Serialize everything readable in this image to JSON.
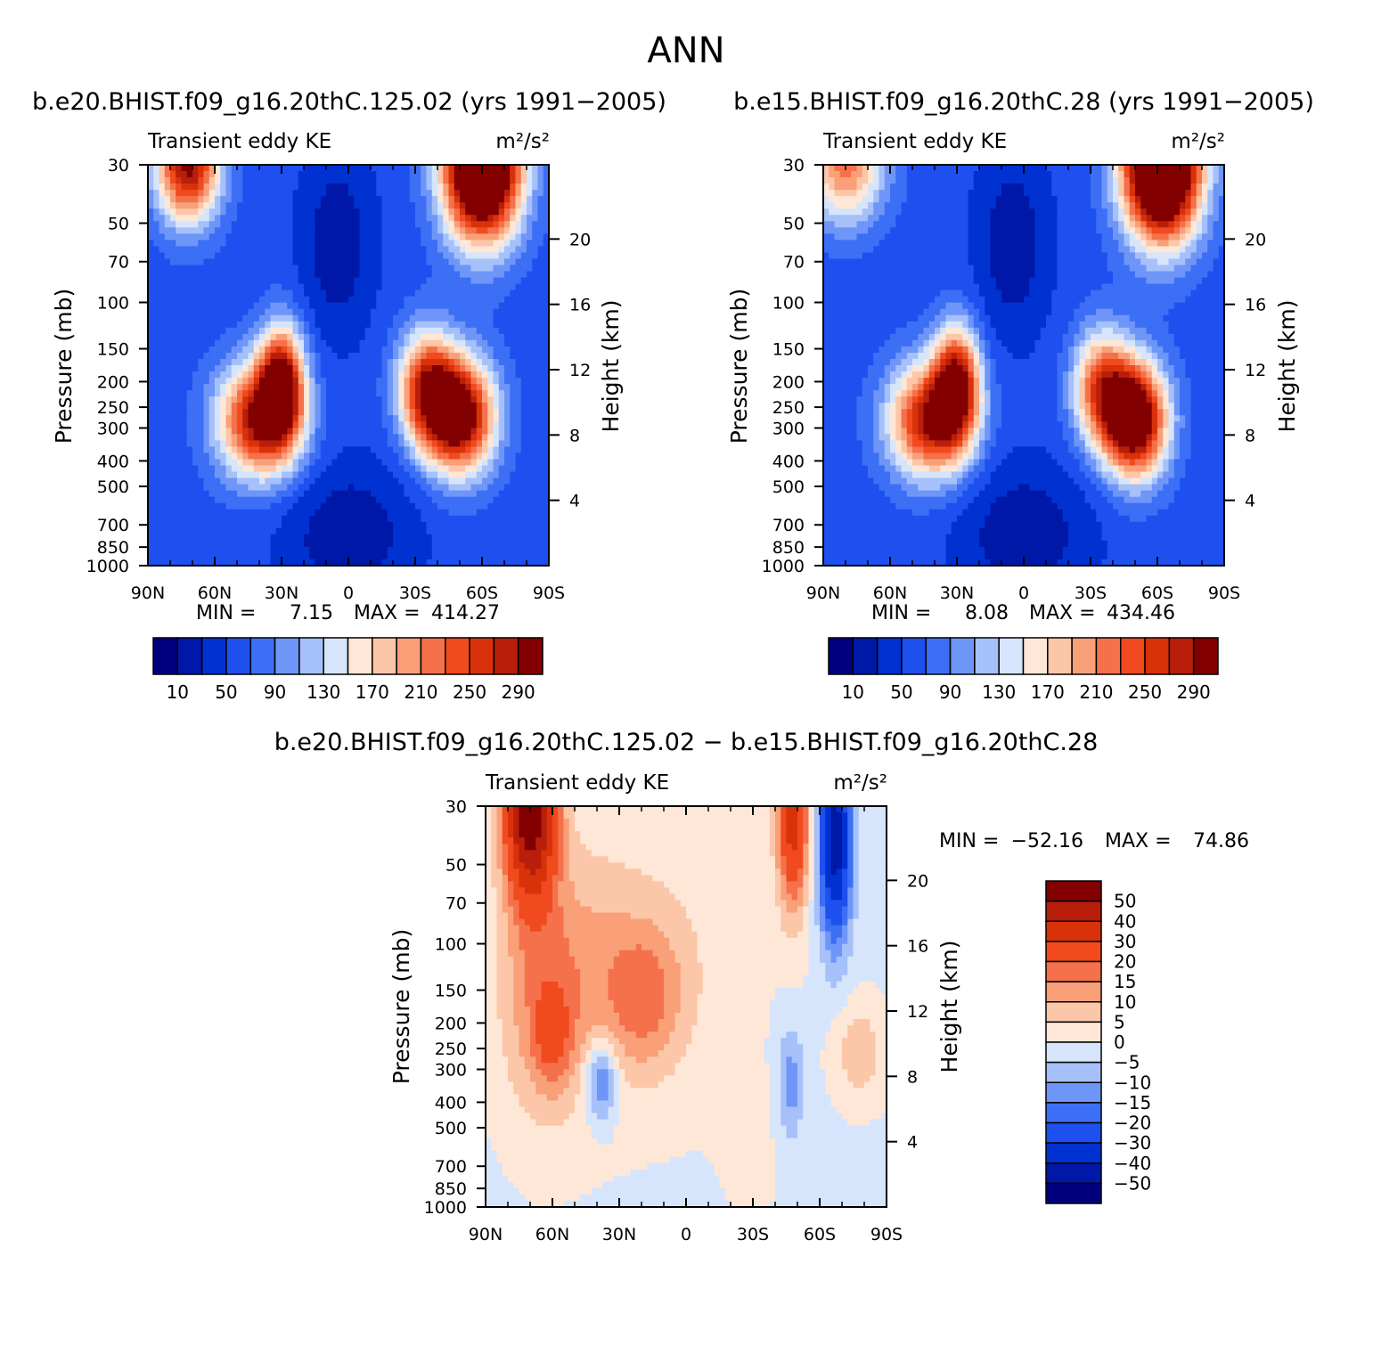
{
  "page_title": "ANN",
  "palettes": {
    "abs": [
      "#00007f",
      "#0018a8",
      "#0032d2",
      "#1e50f0",
      "#3c6ff5",
      "#6e96f8",
      "#a6c0fa",
      "#d6e5fb",
      "#fee7d6",
      "#fcc6a8",
      "#f9a079",
      "#f5714b",
      "#f04a1e",
      "#d9320a",
      "#b81e0a",
      "#820000"
    ],
    "diff": [
      "#00007f",
      "#0018a8",
      "#0032d2",
      "#1e50f0",
      "#3c6ff5",
      "#6e96f8",
      "#a6c0fa",
      "#d6e5fb",
      "#fee7d6",
      "#fcc6a8",
      "#f9a079",
      "#f5714b",
      "#f04a1e",
      "#d9320a",
      "#b81e0a",
      "#820000"
    ]
  },
  "chart_data": [
    {
      "type": "heatmap",
      "id": "panel_a",
      "title": "b.e20.BHIST.f09_g16.20thC.125.02 (yrs 1991−2005)",
      "left_label": "Transient eddy KE",
      "right_label": "m²/s²",
      "ylabel": "Pressure (mb)",
      "y2label": "Height (km)",
      "x_ticks": [
        "90N",
        "60N",
        "30N",
        "0",
        "30S",
        "60S",
        "90S"
      ],
      "x_values": [
        90,
        60,
        30,
        0,
        -30,
        -60,
        -90
      ],
      "y_ticks": [
        30,
        50,
        70,
        100,
        150,
        200,
        250,
        300,
        400,
        500,
        700,
        850,
        1000
      ],
      "y2_ticks": [
        20,
        16,
        12,
        8,
        4
      ],
      "ylim": [
        1000,
        30
      ],
      "stats": {
        "min_label": "MIN =",
        "min": "7.15",
        "max_label": "MAX =",
        "max": "414.27"
      },
      "levels": [
        10,
        30,
        50,
        70,
        90,
        110,
        130,
        150,
        170,
        190,
        210,
        230,
        250,
        270,
        290
      ],
      "colorbar_labels": [
        "10",
        "50",
        "90",
        "130",
        "170",
        "210",
        "250",
        "290"
      ],
      "field": {
        "base": 60,
        "features": [
          {
            "lat": 72,
            "p": 30,
            "amp": 240,
            "lat_w": 10,
            "lp_w": 0.35
          },
          {
            "lat": -60,
            "p": 30,
            "amp": 400,
            "lat_w": 12,
            "lp_w": 0.45
          },
          {
            "lat": 40,
            "p": 280,
            "amp": 230,
            "lat_w": 13,
            "lp_w": 0.35
          },
          {
            "lat": 30,
            "p": 200,
            "amp": 220,
            "lat_w": 7,
            "lp_w": 0.35
          },
          {
            "lat": -35,
            "p": 210,
            "amp": 190,
            "lat_w": 9,
            "lp_w": 0.35
          },
          {
            "lat": -50,
            "p": 270,
            "amp": 270,
            "lat_w": 11,
            "lp_w": 0.35
          },
          {
            "lat": 5,
            "p": 60,
            "amp": -45,
            "lat_w": 12,
            "lp_w": 0.6
          },
          {
            "lat": 0,
            "p": 750,
            "amp": -45,
            "lat_w": 22,
            "lp_w": 0.45
          }
        ]
      }
    },
    {
      "type": "heatmap",
      "id": "panel_b",
      "title": "b.e15.BHIST.f09_g16.20thC.28 (yrs 1991−2005)",
      "left_label": "Transient eddy KE",
      "right_label": "m²/s²",
      "ylabel": "Pressure (mb)",
      "y2label": "Height (km)",
      "x_ticks": [
        "90N",
        "60N",
        "30N",
        "0",
        "30S",
        "60S",
        "90S"
      ],
      "x_values": [
        90,
        60,
        30,
        0,
        -30,
        -60,
        -90
      ],
      "y_ticks": [
        30,
        50,
        70,
        100,
        150,
        200,
        250,
        300,
        400,
        500,
        700,
        850,
        1000
      ],
      "y2_ticks": [
        20,
        16,
        12,
        8,
        4
      ],
      "ylim": [
        1000,
        30
      ],
      "stats": {
        "min_label": "MIN =",
        "min": "8.08",
        "max_label": "MAX =",
        "max": "434.46"
      },
      "levels": [
        10,
        30,
        50,
        70,
        90,
        110,
        130,
        150,
        170,
        190,
        210,
        230,
        250,
        270,
        290
      ],
      "colorbar_labels": [
        "10",
        "50",
        "90",
        "130",
        "170",
        "210",
        "250",
        "290"
      ],
      "field": {
        "base": 60,
        "features": [
          {
            "lat": 80,
            "p": 30,
            "amp": 160,
            "lat_w": 12,
            "lp_w": 0.35
          },
          {
            "lat": -62,
            "p": 30,
            "amp": 420,
            "lat_w": 12,
            "lp_w": 0.45
          },
          {
            "lat": 42,
            "p": 280,
            "amp": 230,
            "lat_w": 13,
            "lp_w": 0.35
          },
          {
            "lat": 30,
            "p": 200,
            "amp": 210,
            "lat_w": 7,
            "lp_w": 0.35
          },
          {
            "lat": -35,
            "p": 210,
            "amp": 170,
            "lat_w": 9,
            "lp_w": 0.35
          },
          {
            "lat": -50,
            "p": 280,
            "amp": 290,
            "lat_w": 10,
            "lp_w": 0.35
          },
          {
            "lat": 5,
            "p": 60,
            "amp": -45,
            "lat_w": 12,
            "lp_w": 0.6
          },
          {
            "lat": 0,
            "p": 750,
            "amp": -45,
            "lat_w": 22,
            "lp_w": 0.45
          }
        ]
      }
    },
    {
      "type": "heatmap",
      "id": "panel_diff",
      "title": "b.e20.BHIST.f09_g16.20thC.125.02 − b.e15.BHIST.f09_g16.20thC.28",
      "left_label": "Transient eddy KE",
      "right_label": "m²/s²",
      "ylabel": "Pressure (mb)",
      "y2label": "Height (km)",
      "x_ticks": [
        "90N",
        "60N",
        "30N",
        "0",
        "30S",
        "60S",
        "90S"
      ],
      "x_values": [
        90,
        60,
        30,
        0,
        -30,
        -60,
        -90
      ],
      "y_ticks": [
        30,
        50,
        70,
        100,
        150,
        200,
        250,
        300,
        400,
        500,
        700,
        850,
        1000
      ],
      "y2_ticks": [
        20,
        16,
        12,
        8,
        4
      ],
      "ylim": [
        1000,
        30
      ],
      "stats": {
        "min_label": "MIN =",
        "min": "−52.16",
        "max_label": "MAX =",
        "max": "74.86"
      },
      "levels": [
        -50,
        -40,
        -30,
        -20,
        -15,
        -10,
        -5,
        0,
        5,
        10,
        15,
        20,
        30,
        40,
        50
      ],
      "colorbar_labels": [
        "50",
        "40",
        "30",
        "20",
        "15",
        "10",
        "5",
        "0",
        "−5",
        "−10",
        "−15",
        "−20",
        "−30",
        "−40",
        "−50"
      ],
      "field": {
        "base": -1,
        "features": [
          {
            "lat": 70,
            "p": 30,
            "amp": 60,
            "lat_w": 8,
            "lp_w": 0.55
          },
          {
            "lat": 65,
            "p": 150,
            "amp": 15,
            "lat_w": 14,
            "lp_w": 0.8
          },
          {
            "lat": 60,
            "p": 230,
            "amp": 12,
            "lat_w": 6,
            "lp_w": 0.3
          },
          {
            "lat": 40,
            "p": 130,
            "amp": 8,
            "lat_w": 15,
            "lp_w": 0.8
          },
          {
            "lat": 18,
            "p": 160,
            "amp": 14,
            "lat_w": 12,
            "lp_w": 0.45
          },
          {
            "lat": 38,
            "p": 330,
            "amp": -20,
            "lat_w": 5,
            "lp_w": 0.25
          },
          {
            "lat": 5,
            "p": 100,
            "amp": 5,
            "lat_w": 25,
            "lp_w": 1.0
          },
          {
            "lat": -48,
            "p": 30,
            "amp": 38,
            "lat_w": 5,
            "lp_w": 0.6
          },
          {
            "lat": -67,
            "p": 40,
            "amp": -45,
            "lat_w": 5,
            "lp_w": 0.6
          },
          {
            "lat": -47,
            "p": 340,
            "amp": -12,
            "lat_w": 4,
            "lp_w": 0.35
          },
          {
            "lat": -78,
            "p": 260,
            "amp": 10,
            "lat_w": 8,
            "lp_w": 0.3
          },
          {
            "lat": -30,
            "p": 600,
            "amp": 2,
            "lat_w": 10,
            "lp_w": 0.5
          }
        ]
      }
    }
  ]
}
